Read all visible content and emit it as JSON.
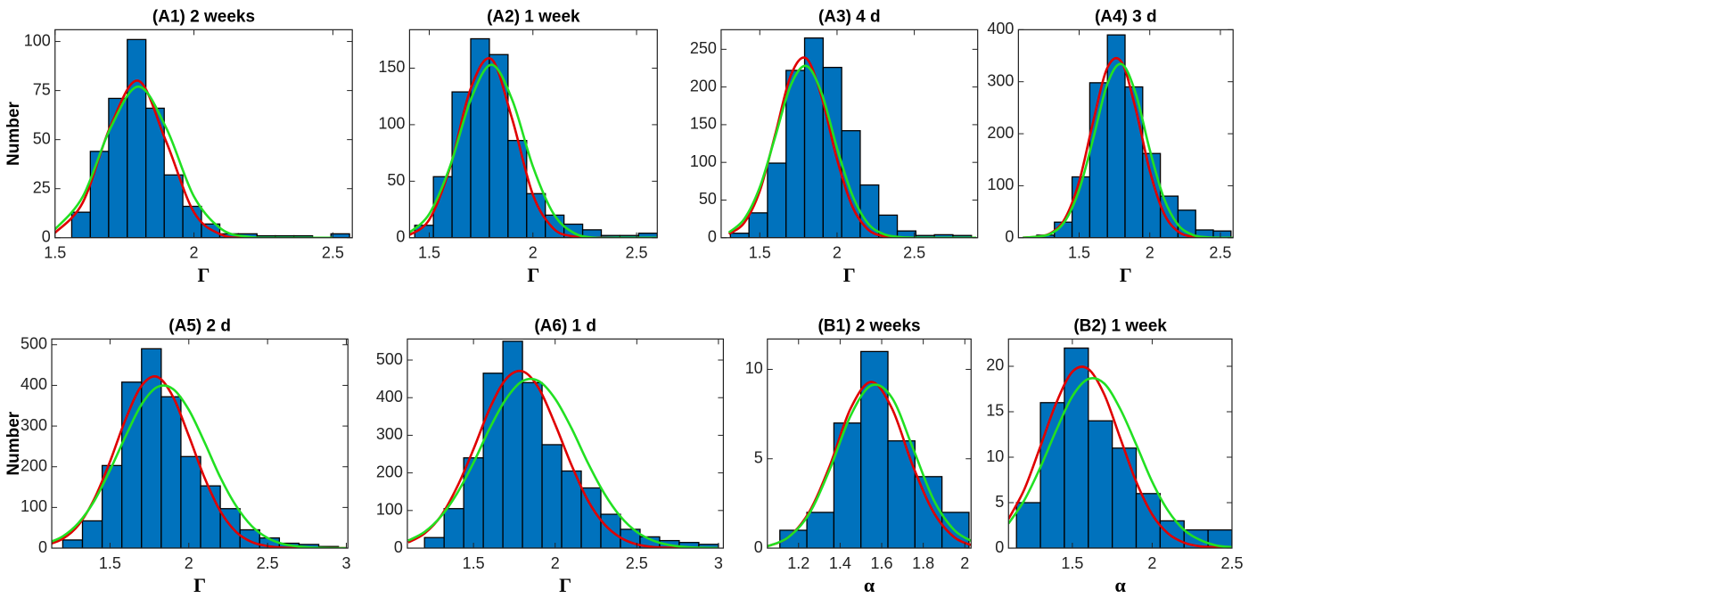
{
  "chart_data": [
    {
      "type": "histogram",
      "title": "(A1) 2 weeks",
      "xlabel": "Γ",
      "ylabel": "Number",
      "color": "#0072bd",
      "bins": [
        1.56,
        1.627,
        1.693,
        1.76,
        1.827,
        1.893,
        1.96,
        2.027,
        2.093,
        2.16,
        2.227,
        2.293,
        2.36,
        2.427,
        2.493,
        2.56
      ],
      "counts": [
        13,
        44,
        71,
        101,
        66,
        32,
        16,
        7,
        2,
        2,
        1,
        1,
        1,
        0,
        2
      ],
      "series": [
        {
          "color": "#e00000",
          "x": [
            1.5,
            1.6,
            1.7,
            1.8,
            1.9,
            2.0,
            2.1,
            2.2,
            2.3,
            2.4,
            2.5
          ],
          "values": [
            2.5,
            18,
            57,
            80,
            49,
            13,
            1.5,
            0,
            0,
            0,
            0
          ]
        },
        {
          "color": "#22e022",
          "x": [
            1.5,
            1.6,
            1.7,
            1.8,
            1.9,
            2.0,
            2.1,
            2.2,
            2.3,
            2.4,
            2.5
          ],
          "values": [
            4.3,
            21,
            56,
            77,
            56,
            21,
            4.3,
            0.4,
            0,
            0,
            0
          ]
        }
      ],
      "xlim": [
        1.5,
        2.57
      ],
      "ylim": [
        0,
        106
      ],
      "xticks": [
        1.5,
        2,
        2.5
      ],
      "yticks": [
        0,
        25,
        50,
        75,
        100
      ]
    },
    {
      "type": "histogram",
      "title": "(A2) 1 week",
      "xlabel": "Γ",
      "color": "#0072bd",
      "bins": [
        1.43,
        1.52,
        1.61,
        1.7,
        1.79,
        1.88,
        1.97,
        2.06,
        2.15,
        2.24,
        2.33,
        2.42,
        2.51,
        2.6
      ],
      "counts": [
        11,
        54,
        129,
        176,
        162,
        86,
        39,
        20,
        12,
        7,
        2,
        2,
        4
      ],
      "series": [
        {
          "color": "#e00000",
          "x": [
            1.4,
            1.5,
            1.6,
            1.7,
            1.8,
            1.9,
            2.0,
            2.1,
            2.2,
            2.3,
            2.4,
            2.5,
            2.6
          ],
          "values": [
            2,
            16,
            62,
            132,
            158,
            105,
            38,
            8,
            1,
            0,
            0,
            0,
            0
          ]
        },
        {
          "color": "#22e022",
          "x": [
            1.4,
            1.5,
            1.6,
            1.7,
            1.8,
            1.9,
            2.0,
            2.1,
            2.2,
            2.3,
            2.4,
            2.5,
            2.6
          ],
          "values": [
            4,
            21,
            63,
            122,
            153,
            122,
            63,
            21,
            4,
            0,
            0,
            0,
            0
          ]
        }
      ],
      "xlim": [
        1.405,
        2.6
      ],
      "ylim": [
        0,
        184
      ],
      "xticks": [
        1.5,
        2,
        2.5
      ],
      "yticks": [
        0,
        50,
        100,
        150
      ]
    },
    {
      "type": "histogram",
      "title": "(A3) 4 d",
      "xlabel": "Γ",
      "color": "#0072bd",
      "bins": [
        1.31,
        1.43,
        1.55,
        1.67,
        1.79,
        1.91,
        2.03,
        2.15,
        2.27,
        2.39,
        2.51,
        2.63,
        2.75,
        2.87
      ],
      "counts": [
        6,
        33,
        99,
        222,
        265,
        226,
        142,
        70,
        30,
        9,
        3,
        4,
        3
      ],
      "series": [
        {
          "color": "#e00000",
          "x": [
            1.3,
            1.4,
            1.5,
            1.6,
            1.7,
            1.8,
            1.9,
            2.0,
            2.1,
            2.2,
            2.3,
            2.4,
            2.5,
            2.6,
            2.7,
            2.8,
            2.9
          ],
          "values": [
            5,
            20,
            62,
            137,
            215,
            238,
            187,
            104,
            41,
            11,
            2,
            0,
            0,
            0,
            0,
            0,
            0
          ]
        },
        {
          "color": "#22e022",
          "x": [
            1.3,
            1.4,
            1.5,
            1.6,
            1.7,
            1.8,
            1.9,
            2.0,
            2.1,
            2.2,
            2.3,
            2.4,
            2.5,
            2.6,
            2.7,
            2.8,
            2.9
          ],
          "values": [
            7,
            25,
            67,
            134,
            202,
            228,
            192,
            119,
            56,
            19,
            5,
            1,
            0,
            0,
            0,
            0,
            0
          ]
        }
      ],
      "xlim": [
        1.25,
        2.91
      ],
      "ylim": [
        0,
        276
      ],
      "xticks": [
        1.5,
        2,
        2.5
      ],
      "yticks": [
        0,
        50,
        100,
        150,
        200,
        250
      ]
    },
    {
      "type": "histogram",
      "title": "(A4) 3 d",
      "xlabel": "Γ",
      "color": "#0072bd",
      "bins": [
        1.2,
        1.325,
        1.45,
        1.575,
        1.7,
        1.825,
        1.95,
        2.075,
        2.2,
        2.325,
        2.45,
        2.575
      ],
      "counts": [
        5,
        30,
        117,
        298,
        390,
        290,
        162,
        80,
        53,
        15,
        13
      ],
      "series": [
        {
          "color": "#e00000",
          "x": [
            1.1,
            1.2,
            1.3,
            1.4,
            1.5,
            1.6,
            1.7,
            1.8,
            1.9,
            2.0,
            2.1,
            2.2,
            2.3,
            2.4,
            2.5,
            2.6
          ],
          "values": [
            0,
            2,
            9,
            37,
            108,
            224,
            327,
            338,
            248,
            129,
            47,
            12,
            2,
            0,
            0,
            0
          ]
        },
        {
          "color": "#22e022",
          "x": [
            1.1,
            1.2,
            1.3,
            1.4,
            1.5,
            1.6,
            1.7,
            1.8,
            1.9,
            2.0,
            2.1,
            2.2,
            2.3,
            2.4,
            2.5,
            2.6
          ],
          "values": [
            0,
            2,
            8,
            32,
            92,
            191,
            296,
            334,
            278,
            169,
            76,
            25,
            6,
            1,
            0,
            0
          ]
        }
      ],
      "xlim": [
        1.07,
        2.59
      ],
      "ylim": [
        0,
        400
      ],
      "xticks": [
        1.5,
        2,
        2.5
      ],
      "yticks": [
        0,
        100,
        200,
        300,
        400
      ]
    },
    {
      "type": "histogram",
      "title": "(A5) 2 d",
      "xlabel": "Γ",
      "ylabel": "Number",
      "color": "#0072bd",
      "bins": [
        1.2,
        1.325,
        1.45,
        1.575,
        1.7,
        1.825,
        1.95,
        2.075,
        2.2,
        2.325,
        2.45,
        2.575,
        2.7,
        2.825,
        2.95
      ],
      "counts": [
        20,
        67,
        203,
        408,
        490,
        372,
        225,
        153,
        97,
        45,
        25,
        12,
        9,
        4
      ],
      "series": [
        {
          "color": "#e00000",
          "x": [
            1.1,
            1.2,
            1.3,
            1.4,
            1.5,
            1.6,
            1.7,
            1.8,
            1.9,
            2.0,
            2.1,
            2.2,
            2.3,
            2.4,
            2.5,
            2.6,
            2.7,
            2.8,
            2.9,
            3.0
          ],
          "values": [
            8,
            23,
            57,
            121,
            213,
            318,
            399,
            421,
            372,
            276,
            173,
            91,
            40,
            15,
            5,
            1,
            0,
            0,
            0,
            0
          ]
        },
        {
          "color": "#22e022",
          "x": [
            1.1,
            1.2,
            1.3,
            1.4,
            1.5,
            1.6,
            1.7,
            1.8,
            1.9,
            2.0,
            2.1,
            2.2,
            2.3,
            2.4,
            2.5,
            2.6,
            2.7,
            2.8,
            2.9,
            3.0
          ],
          "values": [
            12,
            29,
            62,
            116,
            192,
            276,
            353,
            396,
            391,
            340,
            260,
            174,
            104,
            54,
            25,
            10,
            4,
            1,
            0,
            0
          ]
        }
      ],
      "xlim": [
        1.13,
        3.01
      ],
      "ylim": [
        0,
        514
      ],
      "xticks": [
        1.5,
        2,
        2.5,
        3
      ],
      "yticks": [
        0,
        100,
        200,
        300,
        400,
        500
      ]
    },
    {
      "type": "histogram",
      "title": "(A6) 1 d",
      "xlabel": "Γ",
      "color": "#0072bd",
      "bins": [
        1.2,
        1.32,
        1.44,
        1.56,
        1.68,
        1.8,
        1.92,
        2.04,
        2.16,
        2.28,
        2.4,
        2.52,
        2.64,
        2.76,
        2.88,
        3.0
      ],
      "counts": [
        28,
        105,
        240,
        465,
        550,
        440,
        275,
        205,
        160,
        90,
        50,
        30,
        20,
        15,
        10
      ],
      "series": [
        {
          "color": "#e00000",
          "x": [
            1.1,
            1.2,
            1.3,
            1.4,
            1.5,
            1.6,
            1.7,
            1.8,
            1.9,
            2.0,
            2.1,
            2.2,
            2.3,
            2.4,
            2.5,
            2.6,
            2.7,
            2.8,
            2.9,
            3.0
          ],
          "values": [
            15,
            39,
            85,
            163,
            263,
            372,
            450,
            470,
            425,
            329,
            221,
            127,
            64,
            28,
            10,
            3,
            1,
            0,
            0,
            0
          ]
        },
        {
          "color": "#22e022",
          "x": [
            1.1,
            1.2,
            1.3,
            1.4,
            1.5,
            1.6,
            1.7,
            1.8,
            1.9,
            2.0,
            2.1,
            2.2,
            2.3,
            2.4,
            2.5,
            2.6,
            2.7,
            2.8,
            2.9,
            3.0
          ],
          "values": [
            20,
            43,
            84,
            146,
            227,
            319,
            397,
            444,
            444,
            397,
            319,
            227,
            146,
            84,
            43,
            20,
            8,
            3,
            1,
            0
          ]
        }
      ],
      "xlim": [
        1.095,
        3.03
      ],
      "ylim": [
        0,
        556
      ],
      "xticks": [
        1.5,
        2,
        2.5,
        3
      ],
      "yticks": [
        0,
        100,
        200,
        300,
        400,
        500
      ]
    },
    {
      "type": "histogram",
      "title": "(B1) 2 weeks",
      "xlabel": "α",
      "color": "#0072bd",
      "bins": [
        1.11,
        1.24,
        1.37,
        1.5,
        1.63,
        1.76,
        1.89,
        2.02
      ],
      "counts": [
        1,
        2,
        7,
        11,
        6,
        4,
        2
      ],
      "series": [
        {
          "color": "#e00000",
          "x": [
            1.05,
            1.15,
            1.25,
            1.35,
            1.45,
            1.55,
            1.65,
            1.75,
            1.85,
            1.95,
            2.05
          ],
          "values": [
            0.1,
            0.6,
            2.0,
            4.6,
            7.8,
            9.3,
            7.8,
            4.6,
            2.0,
            0.6,
            0.1
          ]
        },
        {
          "color": "#22e022",
          "x": [
            1.05,
            1.15,
            1.25,
            1.35,
            1.45,
            1.55,
            1.65,
            1.75,
            1.85,
            1.95,
            2.05
          ],
          "values": [
            0.1,
            0.6,
            1.9,
            4.4,
            7.4,
            9.1,
            8.4,
            5.6,
            2.7,
            1.0,
            0.3
          ]
        }
      ],
      "xlim": [
        1.05,
        2.03
      ],
      "ylim": [
        0,
        11.7
      ],
      "xticks": [
        1.2,
        1.4,
        1.6,
        1.8,
        2
      ],
      "yticks": [
        0,
        5,
        10
      ]
    },
    {
      "type": "histogram",
      "title": "(B2) 1 week",
      "xlabel": "α",
      "color": "#0072bd",
      "bins": [
        1.15,
        1.3,
        1.45,
        1.6,
        1.75,
        1.9,
        2.05,
        2.2,
        2.35,
        2.5
      ],
      "counts": [
        5,
        16,
        22,
        14,
        11,
        6,
        3,
        2,
        2
      ],
      "series": [
        {
          "color": "#e00000",
          "x": [
            1.1,
            1.2,
            1.3,
            1.4,
            1.5,
            1.6,
            1.7,
            1.8,
            1.9,
            2.0,
            2.1,
            2.2,
            2.3,
            2.4,
            2.5
          ],
          "values": [
            3.2,
            6.5,
            11.2,
            16,
            19.4,
            19.7,
            16.9,
            12.1,
            7.3,
            3.7,
            1.6,
            0.6,
            0.2,
            0.1,
            0
          ]
        },
        {
          "color": "#22e022",
          "x": [
            1.1,
            1.2,
            1.3,
            1.4,
            1.5,
            1.6,
            1.7,
            1.8,
            1.9,
            2.0,
            2.1,
            2.2,
            2.3,
            2.4,
            2.5
          ],
          "values": [
            2.7,
            5.3,
            8.9,
            13,
            16.7,
            18.6,
            18.1,
            15.3,
            11.4,
            7.3,
            4.1,
            2,
            0.9,
            0.3,
            0.1
          ]
        }
      ],
      "xlim": [
        1.1,
        2.5
      ],
      "ylim": [
        0,
        23
      ],
      "xticks": [
        1.5,
        2,
        2.5
      ],
      "yticks": [
        0,
        5,
        10,
        15,
        20
      ]
    }
  ]
}
